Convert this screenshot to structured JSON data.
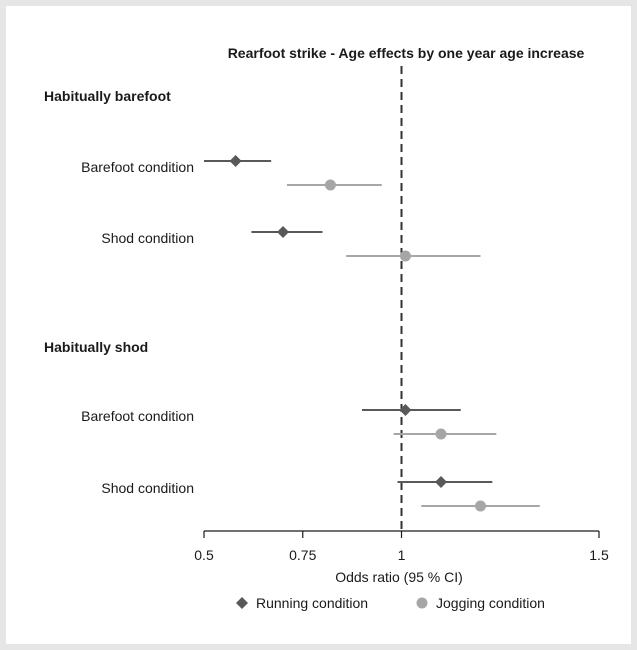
{
  "chart_data": {
    "type": "forest",
    "title": "Rearfoot strike - Age effects by one year age increase",
    "xlabel": "Odds ratio (95 % CI)",
    "xlim": [
      0.5,
      1.5
    ],
    "xticks": [
      0.5,
      0.75,
      1,
      1.5
    ],
    "xtick_labels": [
      "0.5",
      "0.75",
      "1",
      "1.5"
    ],
    "reference_line": 1,
    "groups": [
      {
        "label": "Habitually barefoot",
        "rows": [
          {
            "label": "Barefoot condition",
            "running": {
              "or": 0.58,
              "lo": 0.5,
              "hi": 0.67
            },
            "jogging": {
              "or": 0.82,
              "lo": 0.71,
              "hi": 0.95
            }
          },
          {
            "label": "Shod condition",
            "running": {
              "or": 0.7,
              "lo": 0.62,
              "hi": 0.8
            },
            "jogging": {
              "or": 1.01,
              "lo": 0.86,
              "hi": 1.2
            }
          }
        ]
      },
      {
        "label": "Habitually shod",
        "rows": [
          {
            "label": "Barefoot condition",
            "running": {
              "or": 1.01,
              "lo": 0.9,
              "hi": 1.15
            },
            "jogging": {
              "or": 1.1,
              "lo": 0.98,
              "hi": 1.24
            }
          },
          {
            "label": "Shod condition",
            "running": {
              "or": 1.1,
              "lo": 0.99,
              "hi": 1.23
            },
            "jogging": {
              "or": 1.2,
              "lo": 1.05,
              "hi": 1.35
            }
          }
        ]
      }
    ],
    "series": [
      {
        "key": "running",
        "name": "Running condition",
        "marker": "diamond",
        "color": "#595959"
      },
      {
        "key": "jogging",
        "name": "Jogging condition",
        "marker": "circle",
        "color": "#a6a6a6"
      }
    ],
    "legend_position": "bottom"
  }
}
